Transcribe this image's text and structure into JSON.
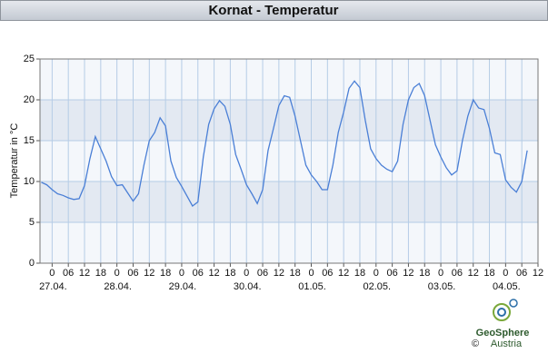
{
  "chart_data": {
    "type": "line",
    "title": "Kornat - Temperatur",
    "y_label": "Temperatur in °C",
    "grid": true,
    "xlim": [
      -4.5,
      180
    ],
    "ylim": [
      0,
      25
    ],
    "yticks": [
      0,
      5,
      10,
      15,
      20,
      25
    ],
    "xticks": [
      0,
      {
        "value": 6,
        "label": "06"
      },
      12,
      18,
      {
        "value": 24,
        "label": "0"
      },
      {
        "value": 30,
        "label": "06"
      },
      {
        "value": 36,
        "label": "12"
      },
      {
        "value": 42,
        "label": "18"
      },
      {
        "value": 48,
        "label": "0"
      },
      {
        "value": 54,
        "label": "06"
      },
      {
        "value": 60,
        "label": "12"
      },
      {
        "value": 66,
        "label": "18"
      },
      {
        "value": 72,
        "label": "0"
      },
      {
        "value": 78,
        "label": "06"
      },
      {
        "value": 84,
        "label": "12"
      },
      {
        "value": 90,
        "label": "18"
      },
      {
        "value": 96,
        "label": "0"
      },
      {
        "value": 102,
        "label": "06"
      },
      {
        "value": 108,
        "label": "12"
      },
      {
        "value": 114,
        "label": "18"
      },
      {
        "value": 120,
        "label": "0"
      },
      {
        "value": 126,
        "label": "06"
      },
      {
        "value": 132,
        "label": "12"
      },
      {
        "value": 138,
        "label": "18"
      },
      {
        "value": 144,
        "label": "0"
      },
      {
        "value": 150,
        "label": "06"
      },
      {
        "value": 156,
        "label": "12"
      },
      {
        "value": 162,
        "label": "18"
      },
      {
        "value": 168,
        "label": "0"
      },
      {
        "value": 174,
        "label": "06"
      },
      {
        "value": 180,
        "label": "12"
      }
    ],
    "day_labels": [
      {
        "value": 0,
        "label": "27.04."
      },
      {
        "value": 24,
        "label": "28.04."
      },
      {
        "value": 48,
        "label": "29.04."
      },
      {
        "value": 72,
        "label": "30.04."
      },
      {
        "value": 96,
        "label": "01.05."
      },
      {
        "value": 120,
        "label": "02.05."
      },
      {
        "value": 144,
        "label": "03.05."
      },
      {
        "value": 168,
        "label": "04.05."
      }
    ],
    "series": [
      {
        "name": "Temperatur",
        "color": "#4a7fd6",
        "x": [
          -4,
          -2,
          0,
          2,
          4,
          6,
          8,
          10,
          12,
          14,
          16,
          18,
          20,
          22,
          24,
          26,
          28,
          30,
          32,
          34,
          36,
          38,
          40,
          42,
          44,
          46,
          48,
          50,
          52,
          54,
          56,
          58,
          60,
          62,
          64,
          66,
          68,
          70,
          72,
          74,
          76,
          78,
          80,
          82,
          84,
          86,
          88,
          90,
          92,
          94,
          96,
          98,
          100,
          102,
          104,
          106,
          108,
          110,
          112,
          114,
          116,
          118,
          120,
          122,
          124,
          126,
          128,
          130,
          132,
          134,
          136,
          138,
          140,
          142,
          144,
          146,
          148,
          150,
          152,
          154,
          156,
          158,
          160,
          162,
          164,
          166,
          168,
          170,
          172,
          174,
          176
        ],
        "values": [
          9.9,
          9.6,
          9.0,
          8.5,
          8.3,
          8.0,
          7.8,
          7.9,
          9.5,
          12.8,
          15.5,
          14.0,
          12.5,
          10.6,
          9.5,
          9.6,
          8.6,
          7.6,
          8.5,
          12,
          15,
          16,
          17.8,
          16.8,
          12.5,
          10.5,
          9.4,
          8.2,
          7.0,
          7.5,
          13,
          17,
          18.9,
          19.9,
          19.2,
          17,
          13.3,
          11.5,
          9.6,
          8.5,
          7.3,
          9,
          13.8,
          16.5,
          19.3,
          20.5,
          20.3,
          18,
          15,
          12,
          10.8,
          10,
          9,
          9,
          12,
          16,
          18.5,
          21.4,
          22.3,
          21.5,
          17.5,
          14,
          12.8,
          12,
          11.5,
          11.2,
          12.5,
          17,
          20,
          21.5,
          22,
          20.5,
          17.5,
          14.5,
          13,
          11.7,
          10.8,
          11.3,
          15,
          18,
          20,
          19,
          18.8,
          16.5,
          13.5,
          13.3,
          10.2,
          9.3,
          8.7,
          10,
          13.8
        ]
      }
    ]
  },
  "logo": {
    "name": "GeoSphere",
    "country": "Austria",
    "copyright": "©"
  }
}
